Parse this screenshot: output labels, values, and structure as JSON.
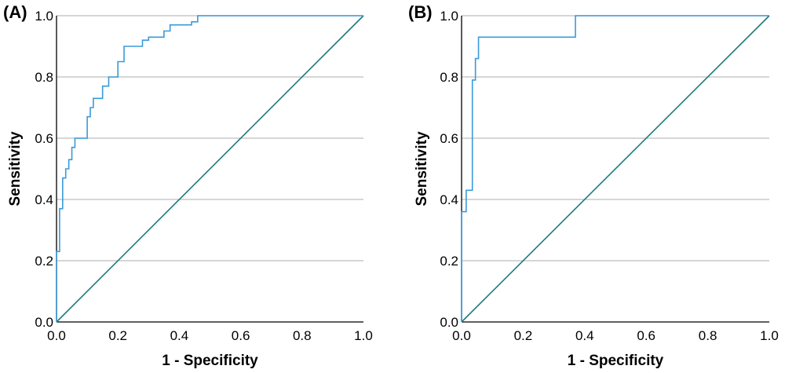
{
  "chart_data": [
    {
      "type": "line",
      "panel_label": "(A)",
      "xlabel": "1 - Specificity",
      "ylabel": "Sensitivity",
      "xlim": [
        0,
        1
      ],
      "ylim": [
        0,
        1
      ],
      "xticks": [
        "0.0",
        "0.2",
        "0.4",
        "0.6",
        "0.8",
        "1.0"
      ],
      "yticks": [
        "0.0",
        "0.2",
        "0.4",
        "0.6",
        "0.8",
        "1.0"
      ],
      "grid": "horizontal",
      "colors": {
        "roc": "#3a9ad9",
        "reference": "#1f7a7a",
        "grid": "#bdbdbd",
        "axis": "#000000"
      },
      "series": [
        {
          "role": "roc",
          "x": [
            0,
            0,
            0.01,
            0.01,
            0.02,
            0.02,
            0.03,
            0.03,
            0.04,
            0.04,
            0.05,
            0.05,
            0.06,
            0.06,
            0.07,
            0.07,
            0.08,
            0.08,
            0.1,
            0.1,
            0.11,
            0.11,
            0.12,
            0.12,
            0.13,
            0.13,
            0.15,
            0.15,
            0.17,
            0.17,
            0.18,
            0.18,
            0.2,
            0.2,
            0.22,
            0.22,
            0.28,
            0.28,
            0.3,
            0.3,
            0.33,
            0.33,
            0.35,
            0.35,
            0.37,
            0.37,
            0.44,
            0.44,
            0.46,
            0.46,
            1
          ],
          "y": [
            0,
            0.23,
            0.23,
            0.37,
            0.37,
            0.47,
            0.47,
            0.5,
            0.5,
            0.53,
            0.53,
            0.57,
            0.57,
            0.6,
            0.6,
            0.6,
            0.6,
            0.6,
            0.6,
            0.67,
            0.67,
            0.7,
            0.7,
            0.73,
            0.73,
            0.73,
            0.73,
            0.77,
            0.77,
            0.8,
            0.8,
            0.8,
            0.8,
            0.85,
            0.85,
            0.9,
            0.9,
            0.92,
            0.92,
            0.93,
            0.93,
            0.93,
            0.93,
            0.95,
            0.95,
            0.97,
            0.97,
            0.98,
            0.98,
            1,
            1
          ]
        },
        {
          "role": "reference",
          "x": [
            0,
            1
          ],
          "y": [
            0,
            1
          ]
        }
      ]
    },
    {
      "type": "line",
      "panel_label": "(B)",
      "xlabel": "1 - Specificity",
      "ylabel": "Sensitivity",
      "xlim": [
        0,
        1
      ],
      "ylim": [
        0,
        1
      ],
      "xticks": [
        "0.0",
        "0.2",
        "0.4",
        "0.6",
        "0.8",
        "1.0"
      ],
      "yticks": [
        "0.0",
        "0.2",
        "0.4",
        "0.6",
        "0.8",
        "1.0"
      ],
      "grid": "horizontal",
      "colors": {
        "roc": "#3a9ad9",
        "reference": "#1f7a7a",
        "grid": "#bdbdbd",
        "axis": "#000000"
      },
      "series": [
        {
          "role": "roc",
          "x": [
            0,
            0,
            0.015,
            0.015,
            0.035,
            0.035,
            0.045,
            0.045,
            0.055,
            0.055,
            0.37,
            0.37,
            1
          ],
          "y": [
            0,
            0.36,
            0.36,
            0.43,
            0.43,
            0.79,
            0.79,
            0.86,
            0.86,
            0.93,
            0.93,
            1,
            1
          ]
        },
        {
          "role": "reference",
          "x": [
            0,
            1
          ],
          "y": [
            0,
            1
          ]
        }
      ]
    }
  ]
}
